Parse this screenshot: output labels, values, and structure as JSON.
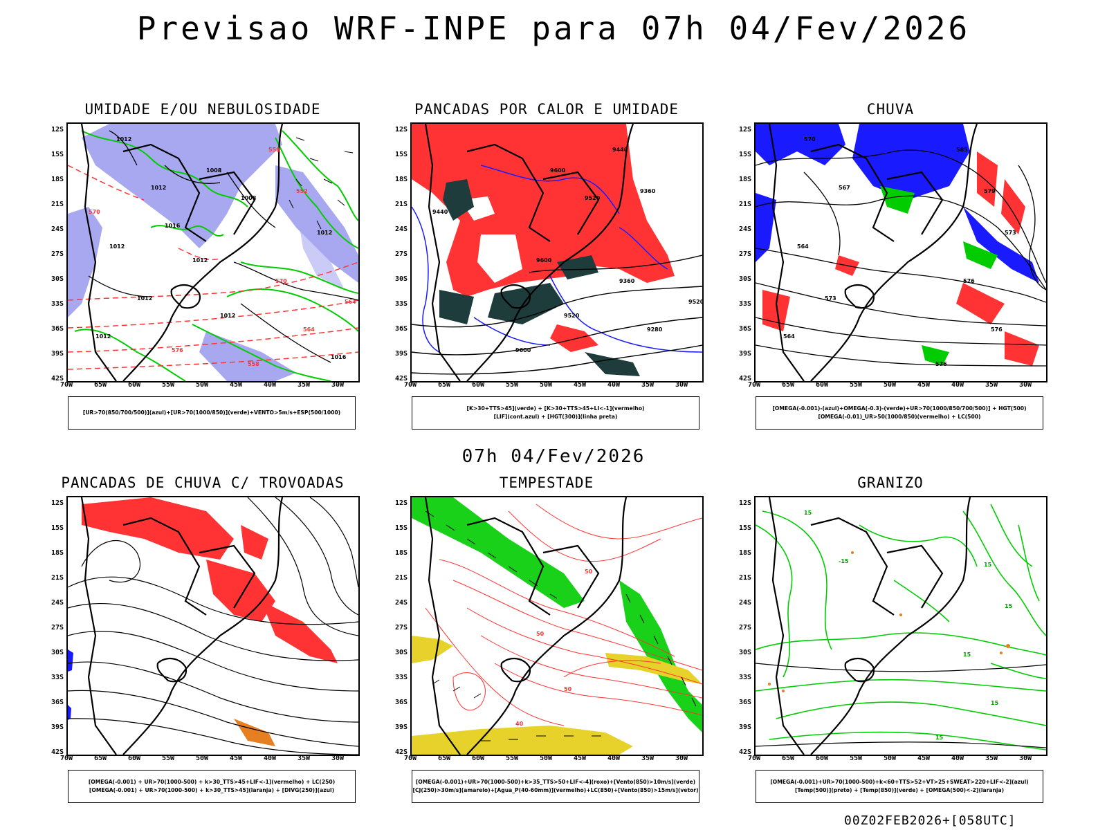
{
  "title": "Previsao WRF-INPE  para 07h 04/Fev/2026",
  "mid_date": "07h 04/Fev/2026",
  "footer": "00Z02FEB2026+[058UTC]",
  "lat_labels": [
    "12S",
    "15S",
    "18S",
    "21S",
    "24S",
    "27S",
    "30S",
    "33S",
    "36S",
    "39S",
    "42S"
  ],
  "lon_labels": [
    "70W",
    "65W",
    "60W",
    "55W",
    "50W",
    "45W",
    "40W",
    "35W",
    "30W"
  ],
  "colors": {
    "red": "#ff3333",
    "blue": "#1a1aff",
    "green": "#00cc00",
    "lavender": "#9999ee",
    "dark": "#1e3c3c",
    "yellow": "#e6d22a",
    "orange": "#e67e22"
  },
  "panels": [
    {
      "title": "UMIDADE E/OU NEBULOSIDADE",
      "legend": [
        "[UR>70(850/700/500)](azul)+[UR>70(1000/850)](verde)+VENTO>5m/s+ESP(500/1000)"
      ],
      "contour_labels": [
        "1012",
        "1012",
        "1012",
        "1012",
        "1012",
        "1016",
        "1016",
        "1008",
        "1008",
        "1012",
        "1012",
        "576",
        "570",
        "564",
        "558",
        "552",
        "570",
        "564",
        "558",
        "1012"
      ]
    },
    {
      "title": "PANCADAS POR CALOR E UMIDADE",
      "legend": [
        "[K>30+TTS>45](verde) + [K>30+TTS>45+LI<-1](vermelho)",
        "[LIF](cont.azul) + [HGT(300)](linha preta)"
      ],
      "contour_labels": [
        "9600",
        "9520",
        "9600",
        "9520",
        "9600",
        "9440",
        "9520",
        "9440",
        "9360",
        "9360",
        "9280"
      ]
    },
    {
      "title": "CHUVA",
      "legend": [
        "[OMEGA(-0.001)-(azul)+OMEGA(-0.3)-(verde)+UR>70(1000/850/700/500)] + HGT(500)",
        "[OMEGA(-0.01)_UR>50(1000/850)(vermelho) + LC(500)"
      ],
      "contour_labels": [
        "585",
        "579",
        "576",
        "576",
        "576",
        "573",
        "570",
        "567",
        "564",
        "573",
        "564"
      ]
    },
    {
      "title": "PANCADAS DE CHUVA C/ TROVOADAS",
      "legend": [
        "[OMEGA(-0.001) + UR>70(1000-500) + k>30_TTS>45+LIF<-1](vermelho) + LC(250)",
        "[OMEGA(-0.001) + UR>70(1000-500) + k>30_TTS>45](laranja) + [DIVG(250)](azul)"
      ],
      "contour_labels": []
    },
    {
      "title": "TEMPESTADE",
      "legend": [
        "[OMEGA(-0.001)+UR>70(1000-500)+k>35_TTS>50+LIF<-4](roxo)+[Vento(850)>10m/s](verde)",
        "[CJ(250)>30m/s](amarelo)+[Agua_P(40-60mm)](vermelho)+LC(850)+[Vento(850)>15m/s](vetor)"
      ],
      "contour_labels": [
        "50",
        "50",
        "50",
        "40"
      ]
    },
    {
      "title": "GRANIZO",
      "legend": [
        "[OMEGA(-0.001)+UR>70(1000-500)+k<60+TTS>52+VT>25+SWEAT>220+LIF<-2](azul)",
        "[Temp(500)](preto) + [Temp(850)](verde) + [OMEGA(500)<-2](laranja)"
      ],
      "contour_labels": [
        "15",
        "15",
        "15",
        "15",
        "15",
        "15",
        "-15"
      ]
    }
  ]
}
